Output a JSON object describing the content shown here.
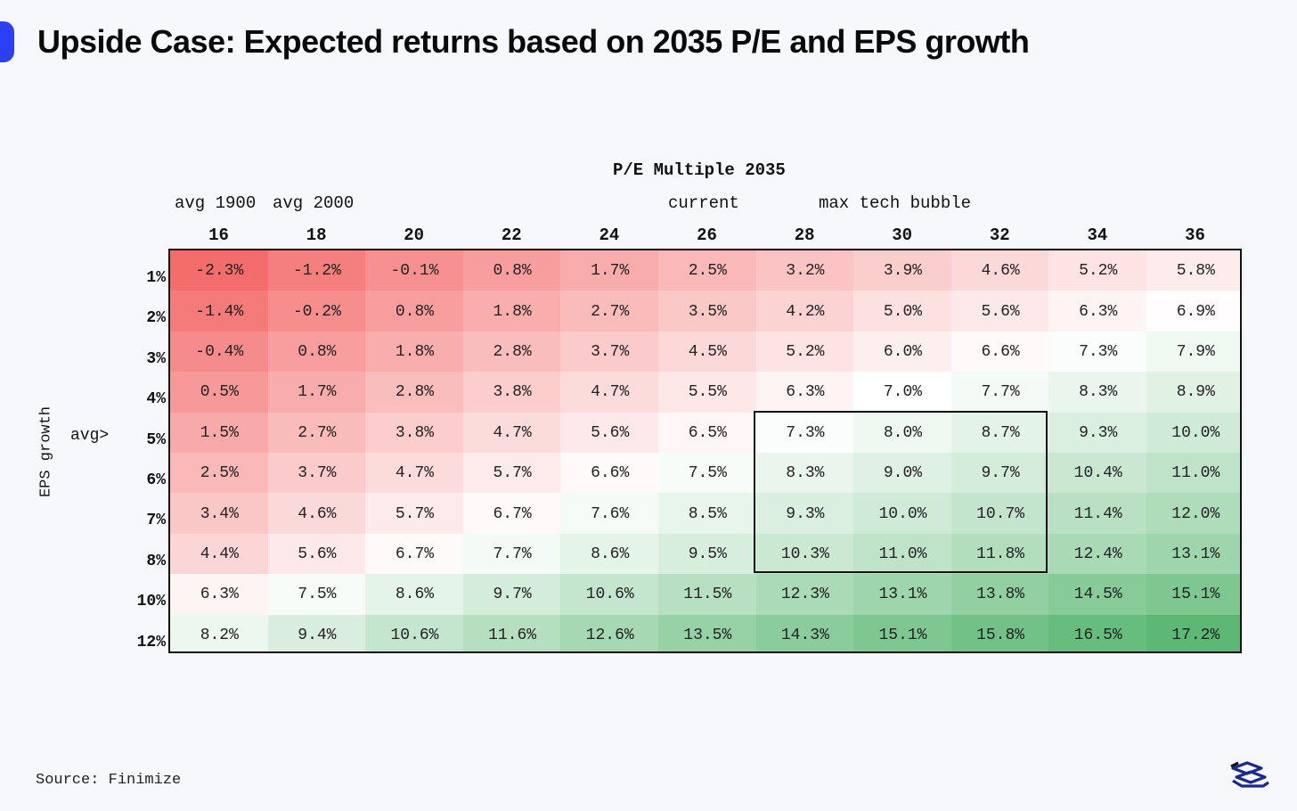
{
  "title": "Upside Case: Expected returns based on 2035 P/E and EPS growth",
  "source": "Source: Finimize",
  "chart_data": {
    "type": "heatmap",
    "xlabel": "P/E Multiple 2035",
    "ylabel": "EPS growth",
    "x_categories": [
      "16",
      "18",
      "20",
      "22",
      "24",
      "26",
      "28",
      "30",
      "32",
      "34",
      "36"
    ],
    "y_categories": [
      "1%",
      "2%",
      "3%",
      "4%",
      "5%",
      "6%",
      "7%",
      "8%",
      "10%",
      "12%"
    ],
    "x_annotations": [
      {
        "label": "avg 1900",
        "column": "16"
      },
      {
        "label": "avg 2000",
        "column": "18"
      },
      {
        "label": "current",
        "column": "26"
      },
      {
        "label": "max tech bubble",
        "column": "30"
      }
    ],
    "y_annotation": {
      "label": "avg>",
      "row": "5%"
    },
    "values": [
      [
        "-2.3%",
        "-1.2%",
        "-0.1%",
        "0.8%",
        "1.7%",
        "2.5%",
        "3.2%",
        "3.9%",
        "4.6%",
        "5.2%",
        "5.8%"
      ],
      [
        "-1.4%",
        "-0.2%",
        "0.8%",
        "1.8%",
        "2.7%",
        "3.5%",
        "4.2%",
        "5.0%",
        "5.6%",
        "6.3%",
        "6.9%"
      ],
      [
        "-0.4%",
        "0.8%",
        "1.8%",
        "2.8%",
        "3.7%",
        "4.5%",
        "5.2%",
        "6.0%",
        "6.6%",
        "7.3%",
        "7.9%"
      ],
      [
        "0.5%",
        "1.7%",
        "2.8%",
        "3.8%",
        "4.7%",
        "5.5%",
        "6.3%",
        "7.0%",
        "7.7%",
        "8.3%",
        "8.9%"
      ],
      [
        "1.5%",
        "2.7%",
        "3.8%",
        "4.7%",
        "5.6%",
        "6.5%",
        "7.3%",
        "8.0%",
        "8.7%",
        "9.3%",
        "10.0%"
      ],
      [
        "2.5%",
        "3.7%",
        "4.7%",
        "5.7%",
        "6.6%",
        "7.5%",
        "8.3%",
        "9.0%",
        "9.7%",
        "10.4%",
        "11.0%"
      ],
      [
        "3.4%",
        "4.6%",
        "5.7%",
        "6.7%",
        "7.6%",
        "8.5%",
        "9.3%",
        "10.0%",
        "10.7%",
        "11.4%",
        "12.0%"
      ],
      [
        "4.4%",
        "5.6%",
        "6.7%",
        "7.7%",
        "8.6%",
        "9.5%",
        "10.3%",
        "11.0%",
        "11.8%",
        "12.4%",
        "13.1%"
      ],
      [
        "6.3%",
        "7.5%",
        "8.6%",
        "9.7%",
        "10.6%",
        "11.5%",
        "12.3%",
        "13.1%",
        "13.8%",
        "14.5%",
        "15.1%"
      ],
      [
        "8.2%",
        "9.4%",
        "10.6%",
        "11.6%",
        "12.6%",
        "13.5%",
        "14.3%",
        "15.1%",
        "15.8%",
        "16.5%",
        "17.2%"
      ]
    ],
    "highlight": {
      "columns": [
        "28",
        "30",
        "32"
      ],
      "rows": [
        "5%",
        "6%",
        "7%",
        "8%"
      ]
    },
    "colors": {
      "low": "#f46d6d",
      "mid": "#ffffff",
      "high": "#5cb874"
    },
    "color_midpoint": 7
  }
}
